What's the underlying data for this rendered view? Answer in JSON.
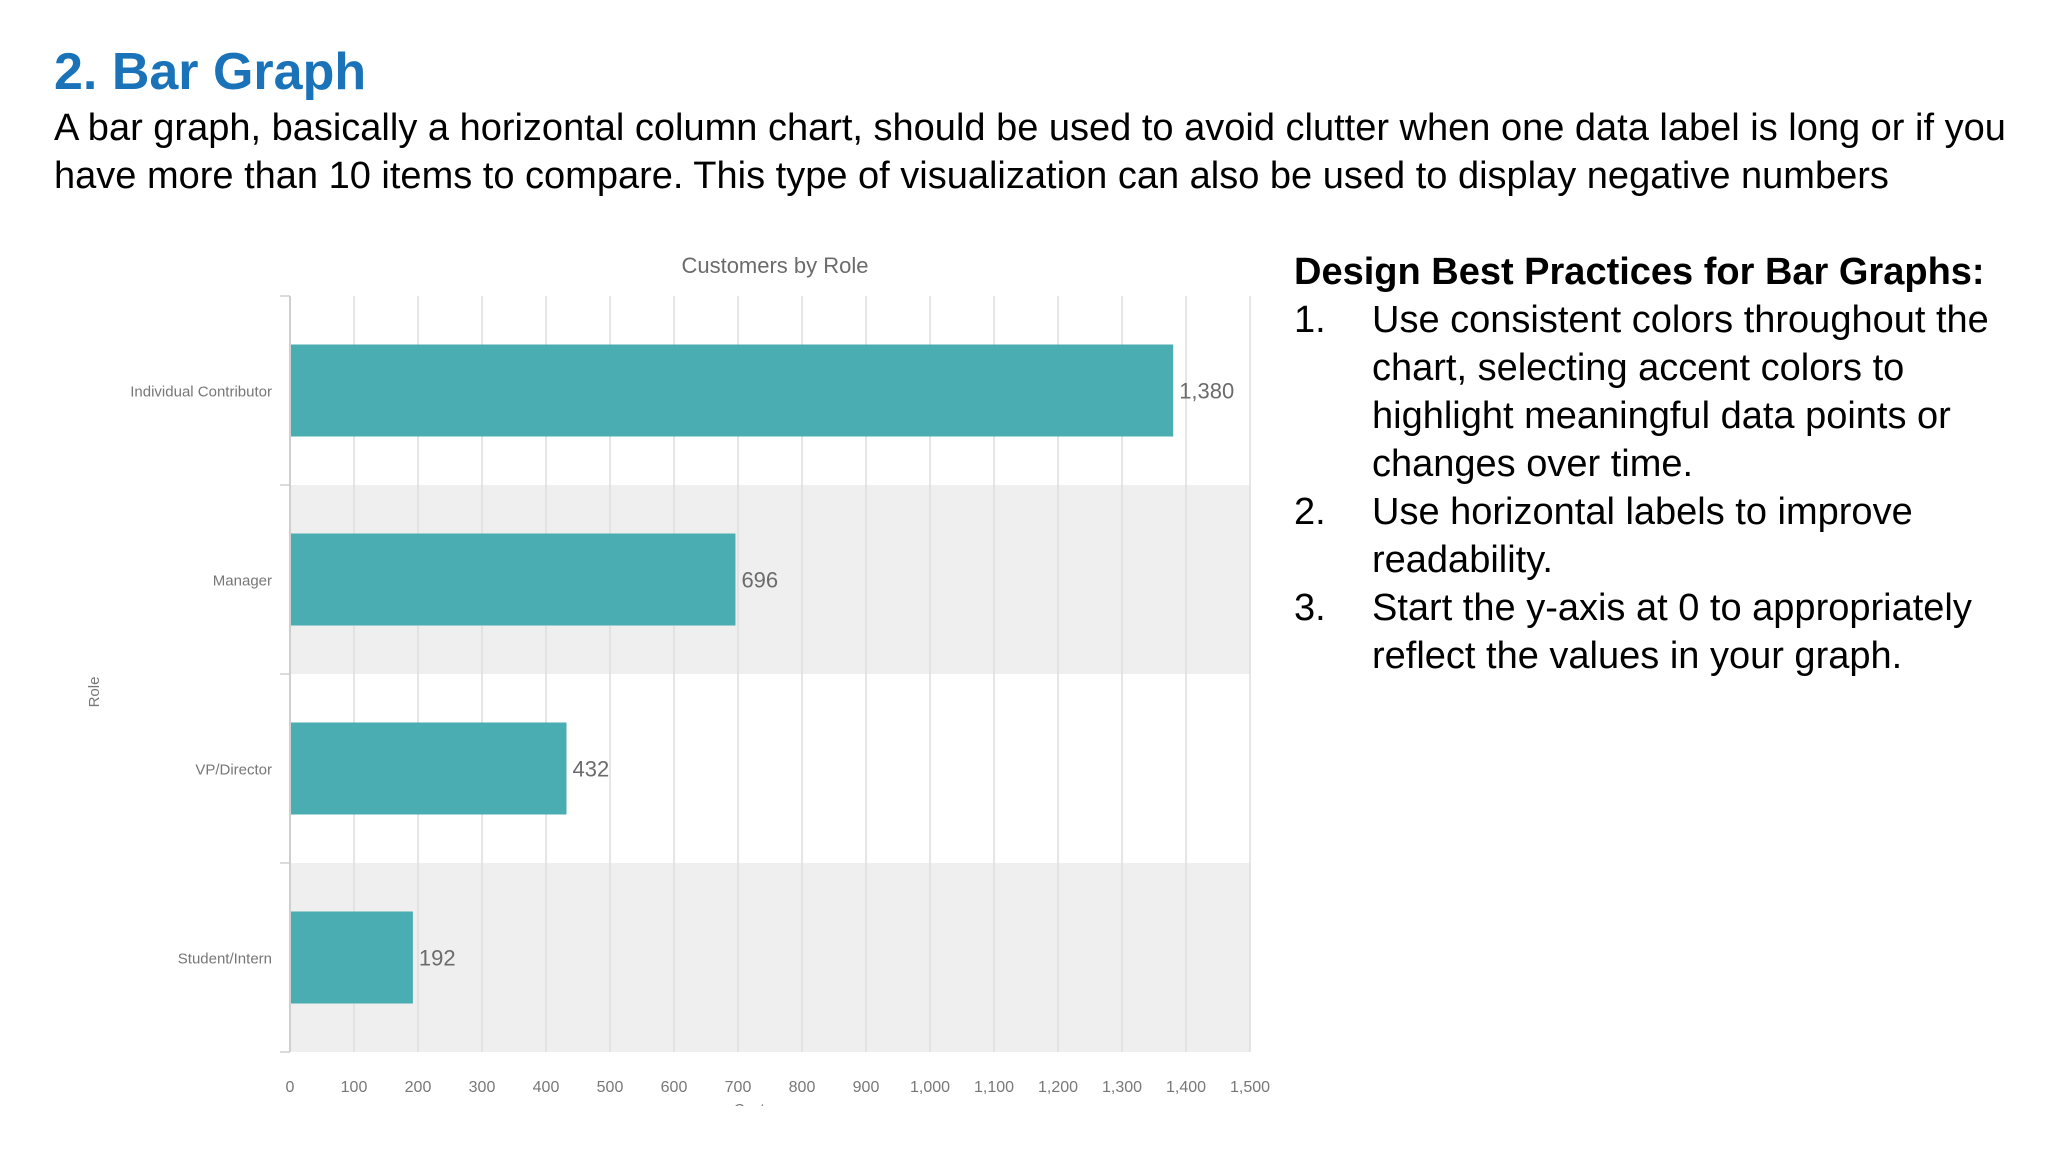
{
  "slide": {
    "title": "2. Bar Graph",
    "intro": "A bar graph, basically a horizontal column chart, should be used to avoid clutter when one data label is long or if you have more than 10 items to compare. This type of visualization can also be used to display negative numbers"
  },
  "best_practices": {
    "heading": "Design Best Practices for Bar Graphs:",
    "items": [
      {
        "num": "1.",
        "text": "Use consistent colors throughout the chart, selecting accent colors to highlight meaningful data points or changes over time."
      },
      {
        "num": "2.",
        "text": "Use horizontal labels to improve readability."
      },
      {
        "num": "3.",
        "text": "Start the y-axis at 0 to appropriately reflect the values in your graph."
      }
    ]
  },
  "chart_data": {
    "type": "bar",
    "orientation": "horizontal",
    "title": "Customers by Role",
    "xlabel": "Customers",
    "ylabel": "Role",
    "categories": [
      "Individual Contributor",
      "Manager",
      "VP/Director",
      "Student/Intern"
    ],
    "values": [
      1380,
      696,
      432,
      192
    ],
    "value_labels": [
      "1,380",
      "696",
      "432",
      "192"
    ],
    "xlim": [
      0,
      1500
    ],
    "xticks": [
      0,
      100,
      200,
      300,
      400,
      500,
      600,
      700,
      800,
      900,
      1000,
      1100,
      1200,
      1300,
      1400,
      1500
    ],
    "xtick_labels": [
      "0",
      "100",
      "200",
      "300",
      "400",
      "500",
      "600",
      "700",
      "800",
      "900",
      "1,000",
      "1,100",
      "1,200",
      "1,300",
      "1,400",
      "1,500"
    ],
    "grid": true,
    "alternating_row_bands": true,
    "colors": {
      "bar": "#4aadb1",
      "band": "#efefef",
      "grid": "#dedede",
      "label": "#6b6b6b",
      "axis_text": "#777777"
    }
  }
}
